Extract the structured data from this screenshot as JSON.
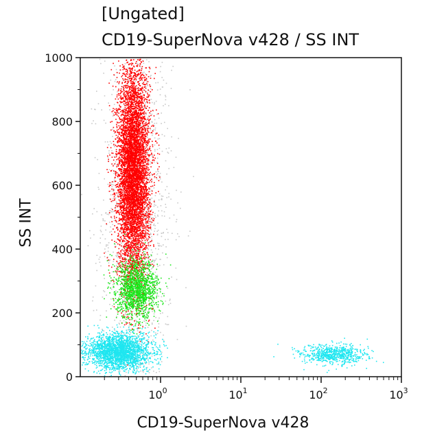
{
  "chart_data": {
    "type": "scatter",
    "title": "[Ungated]",
    "subtitle": "CD19-SuperNova v428 / SS INT",
    "xlabel": "CD19-SuperNova v428",
    "ylabel": "SS INT",
    "x_scale": "log",
    "xlim": [
      0.1,
      1000
    ],
    "ylim": [
      0,
      1000
    ],
    "x_ticks": [
      {
        "value": 1,
        "base": "10",
        "exp": "0"
      },
      {
        "value": 10,
        "base": "10",
        "exp": "1"
      },
      {
        "value": 100,
        "base": "10",
        "exp": "2"
      },
      {
        "value": 1000,
        "base": "10",
        "exp": "3"
      }
    ],
    "y_ticks": [
      0,
      200,
      400,
      600,
      800,
      1000
    ],
    "grid": false,
    "legend": "none",
    "series": [
      {
        "color": "#c8c8c8",
        "x_center": 0.5,
        "y_center": 500,
        "x_spread_log": 0.22,
        "y_spread": 300,
        "count": 1500
      },
      {
        "color": "#ff0000",
        "x_center": 0.45,
        "y_center": 640,
        "x_spread_log": 0.1,
        "y_spread": 170,
        "count": 6500
      },
      {
        "color": "#19e619",
        "x_center": 0.5,
        "y_center": 275,
        "x_spread_log": 0.13,
        "y_spread": 45,
        "count": 1400
      },
      {
        "color": "#1ee6f0",
        "x_center": 0.3,
        "y_center": 80,
        "x_spread_log": 0.2,
        "y_spread": 28,
        "count": 2500
      },
      {
        "color": "#1ee6f0",
        "x_center": 140,
        "y_center": 70,
        "x_spread_log": 0.2,
        "y_spread": 16,
        "count": 700
      }
    ]
  }
}
